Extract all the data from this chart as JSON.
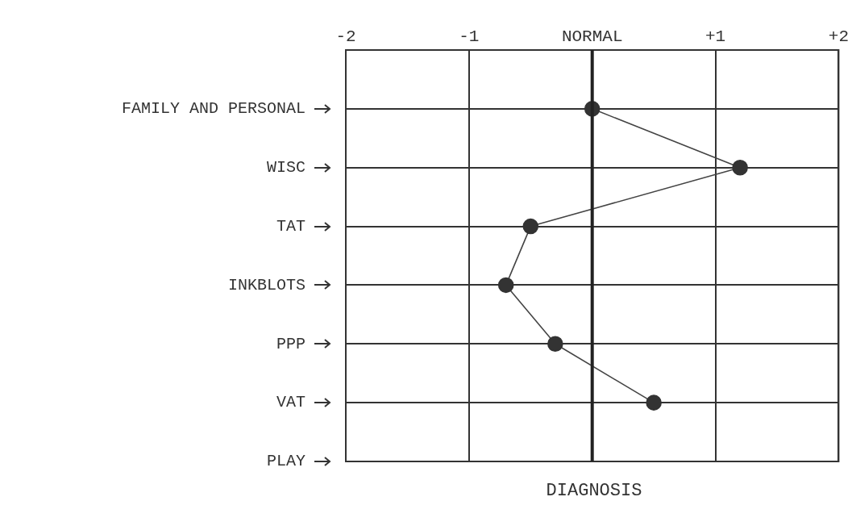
{
  "chart_data": {
    "type": "line",
    "xlabel": "DIAGNOSIS",
    "orientation": "horizontal",
    "categories": [
      "FAMILY AND PERSONAL",
      "WISC",
      "TAT",
      "INKBLOTS",
      "PPP",
      "VAT",
      "PLAY"
    ],
    "series": [
      {
        "color": "#333333",
        "values": [
          0,
          1.2,
          -0.5,
          -0.7,
          -0.3,
          0.5,
          null
        ]
      }
    ],
    "xlim": [
      -2,
      2
    ],
    "xticks": [
      -2,
      -1,
      {
        "value": 0,
        "label": "NORMAL"
      },
      {
        "value": 1,
        "label": "+1"
      },
      {
        "value": 2,
        "label": "+2"
      }
    ],
    "ref_lines": [
      {
        "axis": "x",
        "value": 0,
        "color": "#222222"
      }
    ],
    "grid": true,
    "marker": "circle",
    "line_style": "solid",
    "legend": false
  }
}
